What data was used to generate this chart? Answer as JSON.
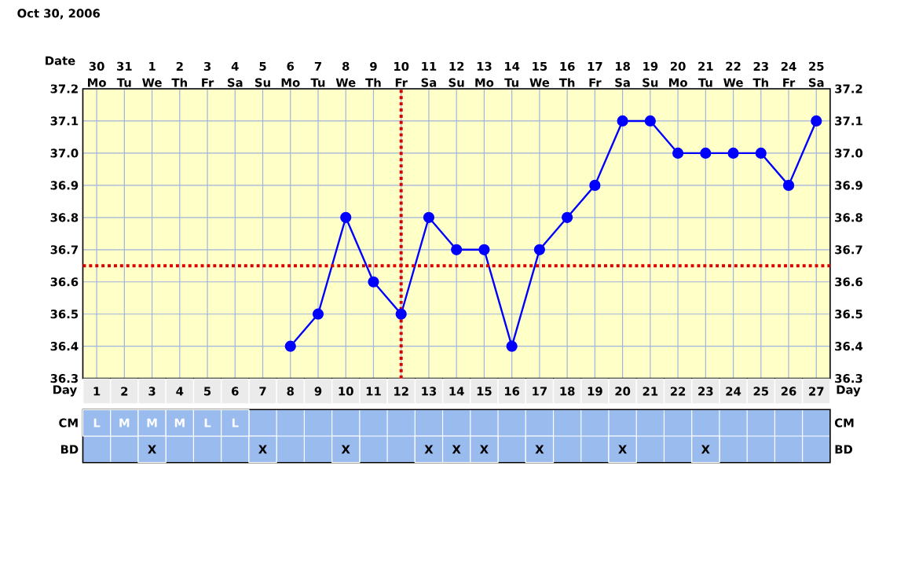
{
  "chart_data": [
    {
      "type": "line",
      "title": "Oct 30, 2006",
      "xlabel": "Date",
      "x2label": "Day",
      "categories": [
        "30 Mo",
        "31 Tu",
        "1 We",
        "2 Th",
        "3 Fr",
        "4 Sa",
        "5 Su",
        "6 Mo",
        "7 Tu",
        "8 We",
        "9 Th",
        "10 Fr",
        "11 Sa",
        "12 Su",
        "13 Mo",
        "14 Tu",
        "15 We",
        "16 Th",
        "17 Fr",
        "18 Sa",
        "19 Su",
        "20 Mo",
        "21 Tu",
        "22 We",
        "23 Th",
        "24 Fr",
        "25 Sa"
      ],
      "x2lim": [
        0.5,
        27.5
      ],
      "x2ticks": [
        1,
        2,
        3,
        4,
        5,
        6,
        7,
        8,
        9,
        10,
        11,
        12,
        13,
        14,
        15,
        16,
        17,
        18,
        19,
        20,
        21,
        22,
        23,
        24,
        25,
        26,
        27
      ],
      "series": [
        {
          "color": "#0000ff",
          "values": [
            null,
            null,
            null,
            null,
            null,
            null,
            null,
            36.4,
            36.5,
            36.8,
            36.6,
            36.5,
            36.8,
            36.7,
            36.7,
            36.4,
            36.7,
            36.8,
            36.9,
            37.1,
            37.1,
            37.0,
            37.0,
            37.0,
            37.0,
            36.9,
            37.1
          ]
        }
      ],
      "ylim": [
        36.3,
        37.2
      ],
      "yticks": [
        36.3,
        36.4,
        36.5,
        36.6,
        36.7,
        36.8,
        36.9,
        {
          "value": 37.0,
          "label": "37.0"
        },
        37.1,
        37.2
      ],
      "y2lim": [
        36.3,
        37.2
      ],
      "y2ticks": [
        36.3,
        36.4,
        36.5,
        36.6,
        36.7,
        36.8,
        36.9,
        {
          "value": 37.0,
          "label": "37.0"
        },
        37.1,
        37.2
      ],
      "ref_lines": [
        {
          "axis": "x2",
          "value": 12,
          "color": "#dd0000",
          "line_style": "dotted"
        },
        {
          "axis": "y",
          "value": 36.65,
          "color": "#dd0000",
          "line_style": "dotted"
        }
      ],
      "grid": true,
      "marker": "circle"
    },
    {
      "type": "heatmap",
      "categories": [
        null,
        null,
        null,
        null,
        null,
        null,
        null,
        null,
        null,
        null,
        null,
        null,
        null,
        null,
        null,
        null,
        null,
        null,
        null,
        null,
        null,
        null,
        null,
        null,
        null,
        null,
        null
      ],
      "y_categories": [
        "CM",
        "BD"
      ],
      "y2_categories": [
        "CM",
        "BD"
      ],
      "cells": [
        [
          null,
          null,
          null,
          null,
          null,
          null,
          null,
          null,
          null,
          null,
          null,
          null,
          null,
          null,
          null,
          null,
          null,
          null,
          null,
          null,
          null,
          null,
          null,
          null,
          null,
          null,
          null
        ],
        [
          null,
          null,
          null,
          null,
          null,
          null,
          null,
          null,
          null,
          null,
          null,
          null,
          null,
          null,
          null,
          null,
          null,
          null,
          null,
          null,
          null,
          null,
          null,
          null,
          null,
          null,
          null
        ]
      ],
      "cell_labels": [
        [
          "L",
          "M",
          "M",
          "M",
          "L",
          "L",
          null,
          null,
          null,
          null,
          null,
          null,
          null,
          null,
          null,
          null,
          null,
          null,
          null,
          null,
          null,
          null,
          null,
          null,
          null,
          null,
          null
        ],
        [
          null,
          null,
          "X",
          null,
          null,
          null,
          "X",
          null,
          null,
          "X",
          null,
          null,
          "X",
          "X",
          "X",
          null,
          "X",
          null,
          null,
          "X",
          null,
          null,
          "X",
          null,
          null,
          null,
          null
        ]
      ]
    }
  ]
}
